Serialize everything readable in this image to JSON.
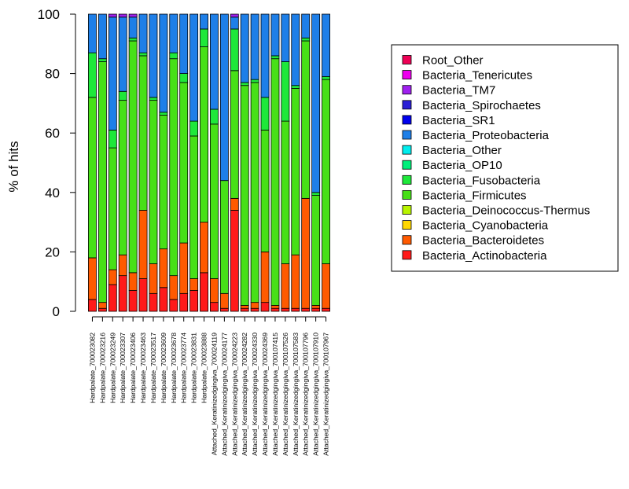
{
  "chart_data": {
    "type": "bar",
    "stacked": true,
    "ylabel": "% of hits",
    "ylim": [
      0,
      100
    ],
    "yticks": [
      0,
      20,
      40,
      60,
      80,
      100
    ],
    "legend_position": "right",
    "categories": [
      "Hardpalate_700023082",
      "Hardpalate_700023216",
      "Hardpalate_700023249",
      "Hardpalate_700023307",
      "Hardpalate_700023406",
      "Hardpalate_700023463",
      "Hardpalate_700023517",
      "Hardpalate_700023609",
      "Hardpalate_700023678",
      "Hardpalate_700023774",
      "Hardpalate_700023831",
      "Hardpalate_700023888",
      "Attached_Keratinizedgingiva_700024119",
      "Attached_Keratinizedgingiva_700024177",
      "Attached_Keratinizedgingiva_700024223",
      "Attached_Keratinizedgingiva_700024282",
      "Attached_Keratinizedgingiva_700024330",
      "Attached_Keratinizedgingiva_700024369",
      "Attached_Keratinizedgingiva_700107415",
      "Attached_Keratinizedgingiva_700107526",
      "Attached_Keratinizedgingiva_700107583",
      "Attached_Keratinizedgingiva_700107796",
      "Attached_Keratinizedgingiva_700107910",
      "Attached_Keratinizedgingiva_700107967"
    ],
    "series": [
      {
        "name": "Bacteria_Actinobacteria",
        "color": "#ff1a1a",
        "values": [
          4,
          1,
          9,
          12,
          7,
          11,
          6,
          8,
          4,
          6,
          7,
          13,
          3,
          1,
          34,
          1,
          1,
          3,
          1,
          1,
          1,
          1,
          1,
          1
        ]
      },
      {
        "name": "Bacteria_Bacteroidetes",
        "color": "#ff5a00",
        "values": [
          14,
          2,
          5,
          7,
          6,
          23,
          10,
          13,
          8,
          17,
          4,
          17,
          8,
          5,
          4,
          1,
          2,
          17,
          1,
          15,
          18,
          37,
          1,
          15
        ]
      },
      {
        "name": "Bacteria_Cyanobacteria",
        "color": "#ffd700",
        "values": [
          0,
          0,
          0,
          0,
          0,
          0,
          0,
          0,
          0,
          0,
          0,
          0,
          0,
          0,
          0,
          0,
          0,
          0,
          0,
          0,
          0,
          0,
          0,
          0
        ]
      },
      {
        "name": "Bacteria_Deinococcus-Thermus",
        "color": "#b8f400",
        "values": [
          0,
          0,
          0,
          0,
          0,
          0,
          0,
          0,
          0,
          0,
          0,
          0,
          0,
          0,
          0,
          0,
          0,
          0,
          0,
          0,
          0,
          0,
          0,
          0
        ]
      },
      {
        "name": "Bacteria_Firmicutes",
        "color": "#47e017",
        "values": [
          54,
          81,
          41,
          52,
          78,
          52,
          55,
          45,
          73,
          54,
          48,
          59,
          52,
          38,
          43,
          74,
          74,
          41,
          83,
          48,
          56,
          53,
          37,
          62
        ]
      },
      {
        "name": "Bacteria_Fusobacteria",
        "color": "#1ee83a",
        "values": [
          15,
          1,
          6,
          3,
          1,
          1,
          1,
          1,
          2,
          3,
          5,
          6,
          5,
          0,
          14,
          1,
          1,
          11,
          1,
          20,
          1,
          1,
          1,
          1
        ]
      },
      {
        "name": "Bacteria_OP10",
        "color": "#00f07a",
        "values": [
          0,
          0,
          0,
          0,
          0,
          0,
          0,
          0,
          0,
          0,
          0,
          0,
          0,
          0,
          0,
          0,
          0,
          0,
          0,
          0,
          0,
          0,
          0,
          0
        ]
      },
      {
        "name": "Bacteria_Other",
        "color": "#00eeee",
        "values": [
          0,
          0,
          0,
          0,
          0,
          0,
          0,
          0,
          0,
          0,
          0,
          0,
          0,
          0,
          0,
          0,
          0,
          0,
          0,
          0,
          0,
          0,
          0,
          0
        ]
      },
      {
        "name": "Bacteria_Proteobacteria",
        "color": "#1e7fe8",
        "values": [
          13,
          15,
          38,
          25,
          7,
          13,
          28,
          33,
          13,
          20,
          36,
          5,
          32,
          56,
          4,
          23,
          22,
          28,
          14,
          16,
          24,
          8,
          60,
          21
        ]
      },
      {
        "name": "Bacteria_SR1",
        "color": "#0000ee",
        "values": [
          0,
          0,
          0,
          0,
          0,
          0,
          0,
          0,
          0,
          0,
          0,
          0,
          0,
          0,
          0,
          0,
          0,
          0,
          0,
          0,
          0,
          0,
          0,
          0
        ]
      },
      {
        "name": "Bacteria_Spirochaetes",
        "color": "#2a1fd6",
        "values": [
          0,
          0,
          0,
          0,
          0,
          0,
          0,
          0,
          0,
          0,
          0,
          0,
          0,
          0,
          0,
          0,
          0,
          0,
          0,
          0,
          0,
          0,
          0,
          0
        ]
      },
      {
        "name": "Bacteria_TM7",
        "color": "#a020f0",
        "values": [
          0,
          0,
          1,
          1,
          1,
          0,
          0,
          0,
          0,
          0,
          0,
          0,
          0,
          0,
          1,
          0,
          0,
          0,
          0,
          0,
          0,
          0,
          0,
          0
        ]
      },
      {
        "name": "Bacteria_Tenericutes",
        "color": "#ee00ee",
        "values": [
          0,
          0,
          0,
          0,
          0,
          0,
          0,
          0,
          0,
          0,
          0,
          0,
          0,
          0,
          0,
          0,
          0,
          0,
          0,
          0,
          0,
          0,
          0,
          0
        ]
      },
      {
        "name": "Root_Other",
        "color": "#ee0055",
        "values": [
          0,
          0,
          0,
          0,
          0,
          0,
          0,
          0,
          0,
          0,
          0,
          0,
          0,
          0,
          0,
          0,
          0,
          0,
          0,
          0,
          0,
          0,
          0,
          0
        ]
      }
    ]
  }
}
